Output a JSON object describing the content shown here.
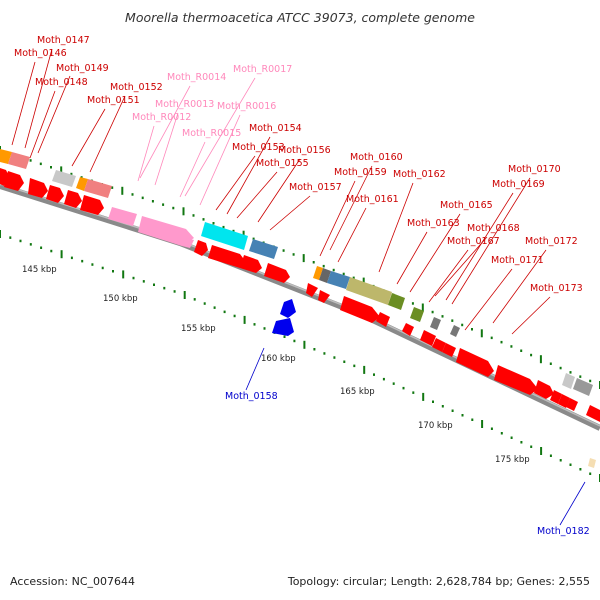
{
  "title": "Moorella thermoacetica ATCC 39073, complete genome",
  "footer": {
    "accession": "Accession: NC_007644",
    "summary": "Topology: circular; Length: 2,628,784 bp; Genes: 2,555"
  },
  "colors": {
    "cds": "#ff0000",
    "rna": "#ff99cc",
    "minus_label": "#0000cc",
    "plus_label": "#cc0000",
    "rna_label": "#ff88bb",
    "tick": "#117711",
    "backbone": "#888888"
  },
  "scale_labels": [
    "145 kbp",
    "150 kbp",
    "155 kbp",
    "160 kbp",
    "165 kbp",
    "170 kbp",
    "175 kbp"
  ],
  "labels": [
    {
      "text": "Moth_0147",
      "kind": "cds"
    },
    {
      "text": "Moth_0146",
      "kind": "cds"
    },
    {
      "text": "Moth_0149",
      "kind": "cds"
    },
    {
      "text": "Moth_0148",
      "kind": "cds"
    },
    {
      "text": "Moth_0152",
      "kind": "cds"
    },
    {
      "text": "Moth_0151",
      "kind": "cds"
    },
    {
      "text": "Moth_R0014",
      "kind": "rna"
    },
    {
      "text": "Moth_R0017",
      "kind": "rna"
    },
    {
      "text": "Moth_R0013",
      "kind": "rna"
    },
    {
      "text": "Moth_R0016",
      "kind": "rna"
    },
    {
      "text": "Moth_R0012",
      "kind": "rna"
    },
    {
      "text": "Moth_R0015",
      "kind": "rna"
    },
    {
      "text": "Moth_0154",
      "kind": "cds"
    },
    {
      "text": "Moth_0153",
      "kind": "cds"
    },
    {
      "text": "Moth_0156",
      "kind": "cds"
    },
    {
      "text": "Moth_0155",
      "kind": "cds"
    },
    {
      "text": "Moth_0160",
      "kind": "cds"
    },
    {
      "text": "Moth_0159",
      "kind": "cds"
    },
    {
      "text": "Moth_0157",
      "kind": "cds"
    },
    {
      "text": "Moth_0162",
      "kind": "cds"
    },
    {
      "text": "Moth_0161",
      "kind": "cds"
    },
    {
      "text": "Moth_0170",
      "kind": "cds"
    },
    {
      "text": "Moth_0169",
      "kind": "cds"
    },
    {
      "text": "Moth_0165",
      "kind": "cds"
    },
    {
      "text": "Moth_0163",
      "kind": "cds"
    },
    {
      "text": "Moth_0168",
      "kind": "cds"
    },
    {
      "text": "Moth_0167",
      "kind": "cds"
    },
    {
      "text": "Moth_0172",
      "kind": "cds"
    },
    {
      "text": "Moth_0171",
      "kind": "cds"
    },
    {
      "text": "Moth_0173",
      "kind": "cds"
    },
    {
      "text": "Moth_0158",
      "kind": "minus"
    },
    {
      "text": "Moth_0182",
      "kind": "minus"
    }
  ]
}
